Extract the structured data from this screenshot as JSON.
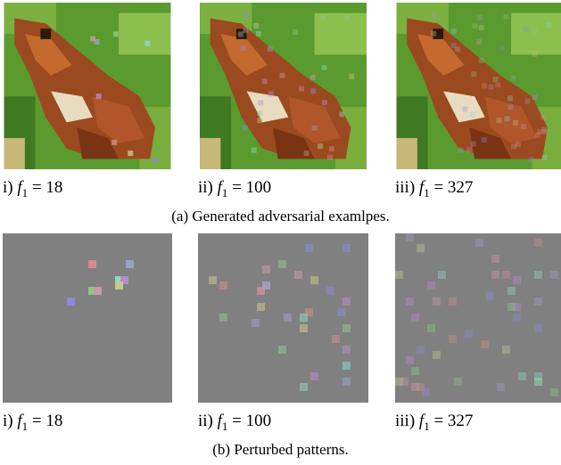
{
  "subfigures": [
    {
      "caption": "(a) Generated adversarial examlpes.",
      "panels": [
        {
          "prefix": "i)",
          "var": "f",
          "sub": "1",
          "eq": "=",
          "value": "18"
        },
        {
          "prefix": "ii)",
          "var": "f",
          "sub": "1",
          "eq": "=",
          "value": "100"
        },
        {
          "prefix": "iii)",
          "var": "f",
          "sub": "1",
          "eq": "=",
          "value": "327"
        }
      ]
    },
    {
      "caption": "(b) Perturbed patterns.",
      "panels": [
        {
          "prefix": "i)",
          "var": "f",
          "sub": "1",
          "eq": "=",
          "value": "18"
        },
        {
          "prefix": "ii)",
          "var": "f",
          "sub": "1",
          "eq": "=",
          "value": "100"
        },
        {
          "prefix": "iii)",
          "var": "f",
          "sub": "1",
          "eq": "=",
          "value": "327"
        }
      ]
    }
  ]
}
